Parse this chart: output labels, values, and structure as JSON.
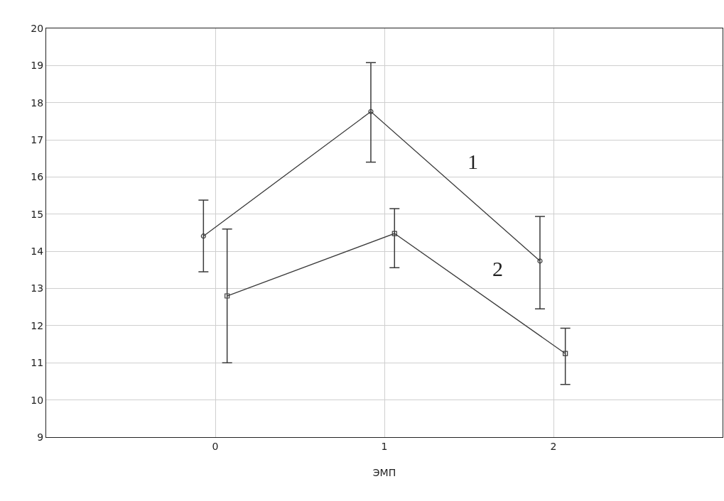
{
  "chart_data": {
    "type": "line",
    "xlabel": "ЭМП",
    "xlim": [
      -1,
      3
    ],
    "xticks": [
      0,
      1,
      2
    ],
    "ylim": [
      9,
      20
    ],
    "yticks": [
      9,
      10,
      11,
      12,
      13,
      14,
      15,
      16,
      17,
      18,
      19,
      20
    ],
    "grid": true,
    "marker": "circle",
    "line_style": "solid",
    "series": [
      {
        "name": "1",
        "color": "#3a3a3a",
        "x": [
          -0.07,
          0.92,
          1.92
        ],
        "values": [
          14.41,
          17.76,
          13.74
        ],
        "errors": [
          [
            13.45,
            15.38
          ],
          [
            16.4,
            19.08
          ],
          [
            12.45,
            14.94
          ]
        ]
      },
      {
        "name": "2",
        "color": "#3a3a3a",
        "marker": "square",
        "x": [
          0.07,
          1.06,
          2.07
        ],
        "values": [
          12.8,
          14.48,
          11.25
        ],
        "errors": [
          [
            11.0,
            14.6
          ],
          [
            13.56,
            15.15
          ],
          [
            10.42,
            11.93
          ]
        ]
      }
    ]
  }
}
